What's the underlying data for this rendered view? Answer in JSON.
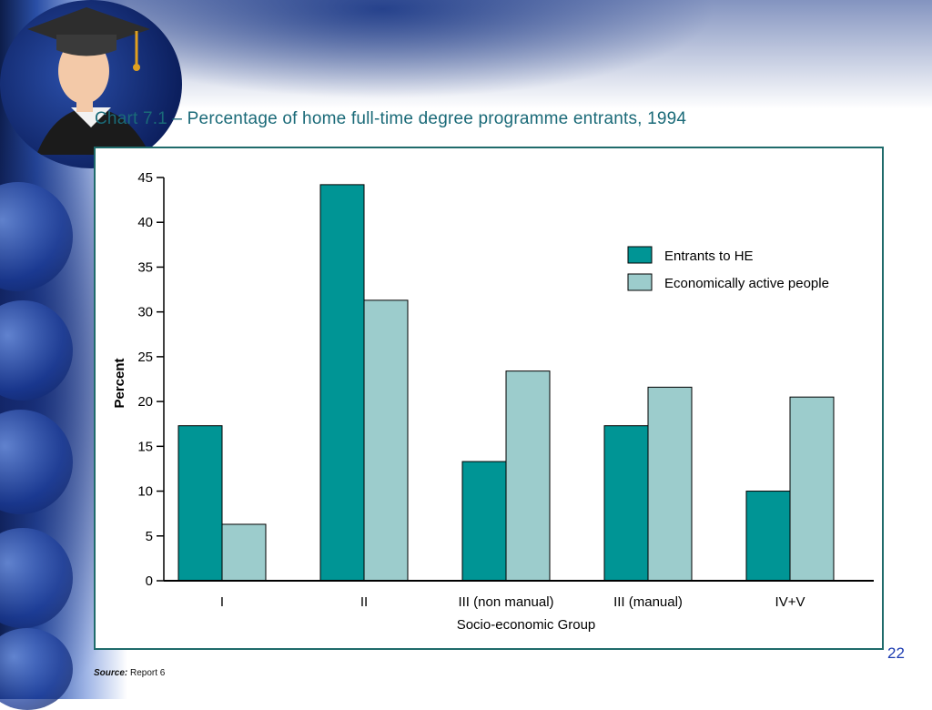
{
  "slide": {
    "page_number": "22",
    "source_label": "Source:",
    "source_text": "Report 6"
  },
  "colors": {
    "entrants": "#009595",
    "active": "#9ccccc",
    "frame": "#1f6b6b",
    "title": "#1a6a78"
  },
  "chart_data": {
    "type": "bar",
    "title": "Chart 7.1 – Percentage of home full-time degree programme entrants, 1994",
    "xlabel": "Socio-economic Group",
    "ylabel": "Percent",
    "ylim": [
      0,
      45
    ],
    "yticks": [
      0,
      5,
      10,
      15,
      20,
      25,
      30,
      35,
      40,
      45
    ],
    "categories": [
      "I",
      "II",
      "III (non manual)",
      "III (manual)",
      "IV+V"
    ],
    "series": [
      {
        "name": "Entrants to HE",
        "color": "#009595",
        "values": [
          17.3,
          44.2,
          13.3,
          17.3,
          10.0
        ]
      },
      {
        "name": "Economically active people",
        "color": "#9ccccc",
        "values": [
          6.3,
          31.3,
          23.4,
          21.6,
          20.5
        ]
      }
    ],
    "legend": "top-right",
    "grid": false
  }
}
